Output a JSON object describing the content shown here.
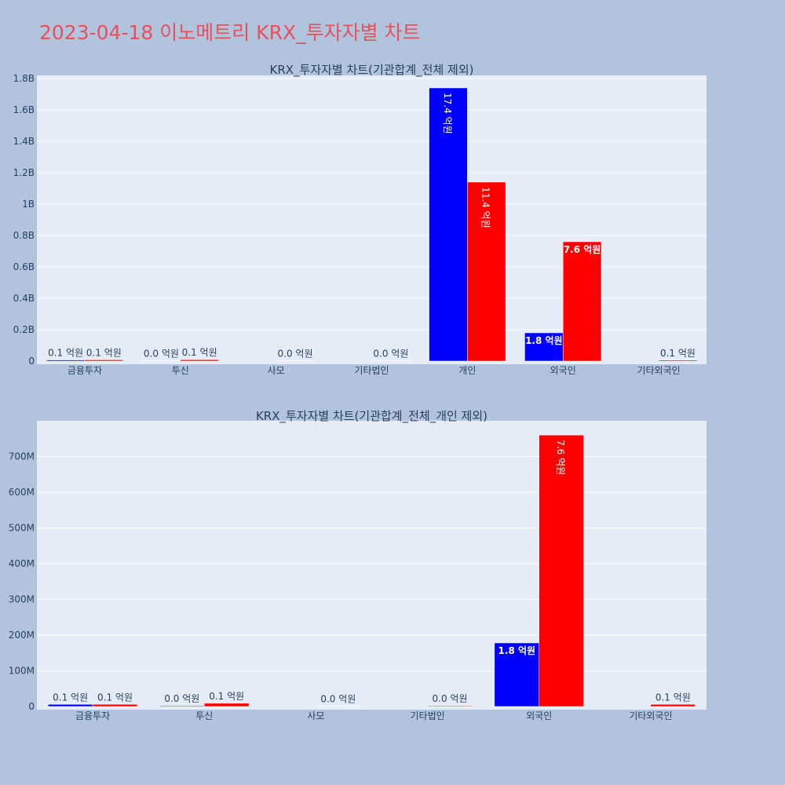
{
  "page_title": "2023-04-18 이노메트리 KRX_투자자별 차트",
  "colors": {
    "background": "#b0c4de",
    "plot_background": "#e5ecf6",
    "gridline": "#ffffff",
    "title": "#e8505b",
    "text": "#2a3f5f",
    "series_blue": "#0000ff",
    "series_red": "#ff0000"
  },
  "chart_data": [
    {
      "type": "bar",
      "title": "KRX_투자자별 차트(기관합계_전체 제외)",
      "categories": [
        "금융투자",
        "투신",
        "사모",
        "기타법인",
        "개인",
        "외국인",
        "기타외국인"
      ],
      "ylim": [
        0,
        1.82
      ],
      "yunit": "B",
      "yticks": [
        0,
        0.2,
        0.4,
        0.6,
        0.8,
        1,
        1.2,
        1.4,
        1.6,
        1.8
      ],
      "ytick_labels": [
        "0",
        "0.2B",
        "0.4B",
        "0.6B",
        "0.8B",
        "1B",
        "1.2B",
        "1.4B",
        "1.6B",
        "1.8B"
      ],
      "grid": true,
      "series": [
        {
          "color": "#0000ff",
          "values": [
            0.007,
            0.002,
            0,
            0,
            1.74,
            0.18,
            0
          ],
          "labels": [
            "0.1 억원",
            "0.0 억원",
            "",
            "",
            "17.4 억원",
            "1.8 억원",
            ""
          ]
        },
        {
          "color": "#ff0000",
          "values": [
            0.008,
            0.009,
            0.002,
            0.002,
            1.14,
            0.76,
            0.006
          ],
          "labels": [
            "0.1 억원",
            "0.1 억원",
            "0.0 억원",
            "0.0 억원",
            "11.4 억원",
            "7.6 억원",
            "0.1 억원"
          ]
        }
      ]
    },
    {
      "type": "bar",
      "title": "KRX_투자자별 차트(기관합계_전체_개인 제외)",
      "categories": [
        "금융투자",
        "투신",
        "사모",
        "기타법인",
        "외국인",
        "기타외국인"
      ],
      "ylim": [
        0,
        800
      ],
      "yunit": "M",
      "yticks": [
        0,
        100,
        200,
        300,
        400,
        500,
        600,
        700
      ],
      "ytick_labels": [
        "0",
        "100M",
        "200M",
        "300M",
        "400M",
        "500M",
        "600M",
        "700M"
      ],
      "grid": true,
      "series": [
        {
          "color": "#0000ff",
          "values": [
            6,
            2,
            0,
            0,
            178,
            0
          ],
          "labels": [
            "0.1 억원",
            "0.0 억원",
            "",
            "",
            "1.8 억원",
            ""
          ]
        },
        {
          "color": "#ff0000",
          "values": [
            6,
            9,
            1,
            2,
            760,
            6
          ],
          "labels": [
            "0.1 억원",
            "0.1 억원",
            "0.0 억원",
            "0.0 억원",
            "7.6 억원",
            "0.1 억원"
          ]
        }
      ]
    }
  ]
}
